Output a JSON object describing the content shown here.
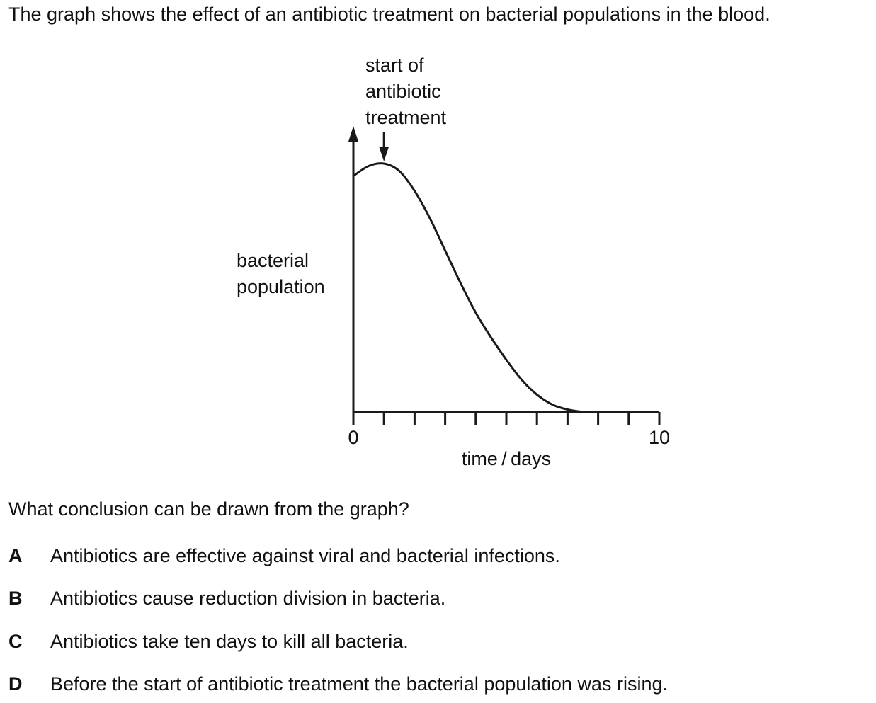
{
  "intro": "The graph shows the effect of an antibiotic treatment on bacterial populations in the blood.",
  "chart_data": {
    "type": "line",
    "title": "",
    "xlabel": "time / days",
    "ylabel_lines": [
      "bacterial",
      "population"
    ],
    "xlim": [
      0,
      10
    ],
    "x_tick_labels": [
      {
        "value": 0,
        "label": "0"
      },
      {
        "value": 10,
        "label": "10"
      }
    ],
    "x_minor_ticks": [
      1,
      2,
      3,
      4,
      5,
      6,
      7,
      8,
      9
    ],
    "y_axis_has_scale": false,
    "grid": false,
    "annotation": {
      "lines": [
        "start of",
        "antibiotic",
        "treatment"
      ],
      "arrow_at_x": 1
    },
    "series": [
      {
        "x": [
          0,
          0.5,
          1,
          1.5,
          2,
          2.5,
          3,
          3.5,
          4,
          4.5,
          5,
          5.5,
          6,
          6.5,
          7,
          7.5
        ],
        "y": [
          0.95,
          0.99,
          1.0,
          0.97,
          0.89,
          0.78,
          0.65,
          0.52,
          0.4,
          0.3,
          0.21,
          0.13,
          0.07,
          0.03,
          0.01,
          0.0
        ]
      }
    ]
  },
  "question": "What conclusion can be drawn from the graph?",
  "options": [
    {
      "letter": "A",
      "text": "Antibiotics are effective against viral and bacterial infections."
    },
    {
      "letter": "B",
      "text": "Antibiotics cause reduction division in bacteria."
    },
    {
      "letter": "C",
      "text": "Antibiotics take ten days to kill all bacteria."
    },
    {
      "letter": "D",
      "text": "Before the start of antibiotic treatment the bacterial population was rising."
    }
  ]
}
